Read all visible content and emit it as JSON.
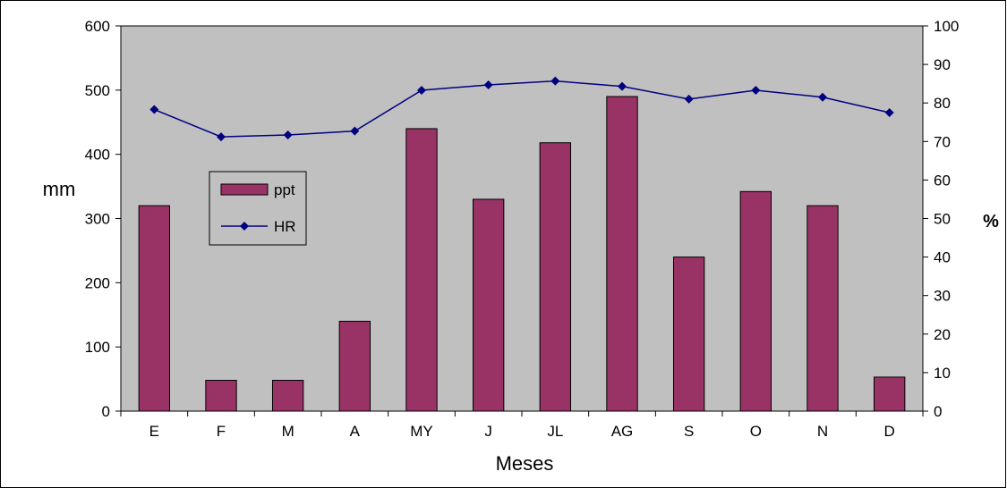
{
  "chart_data": {
    "type": "bar",
    "title": "",
    "categories": [
      "E",
      "F",
      "M",
      "A",
      "MY",
      "J",
      "JL",
      "AG",
      "S",
      "O",
      "N",
      "D"
    ],
    "series": [
      {
        "name": "ppt",
        "type": "bar",
        "axis": "left",
        "color": "#993366",
        "values": [
          320,
          48,
          48,
          140,
          440,
          330,
          418,
          490,
          240,
          342,
          320,
          53
        ]
      },
      {
        "name": "HR",
        "type": "line",
        "axis": "right",
        "color": "#000080",
        "marker": "diamond",
        "values": [
          78.3,
          71.2,
          71.7,
          72.7,
          83.3,
          84.7,
          85.7,
          84.3,
          81,
          83.3,
          81.5,
          77.5
        ]
      }
    ],
    "xlabel": "Meses",
    "ylabel": "mm",
    "y2label": "%",
    "ylim": [
      0,
      600
    ],
    "y2lim": [
      0,
      100
    ],
    "yticks": [
      "0",
      "100",
      "200",
      "300",
      "400",
      "500",
      "600"
    ],
    "y2ticks": [
      "0",
      "10",
      "20",
      "30",
      "40",
      "50",
      "60",
      "70",
      "80",
      "90",
      "100"
    ],
    "plot_background": "#c0c0c0",
    "grid": false,
    "legend": "inside-left"
  }
}
